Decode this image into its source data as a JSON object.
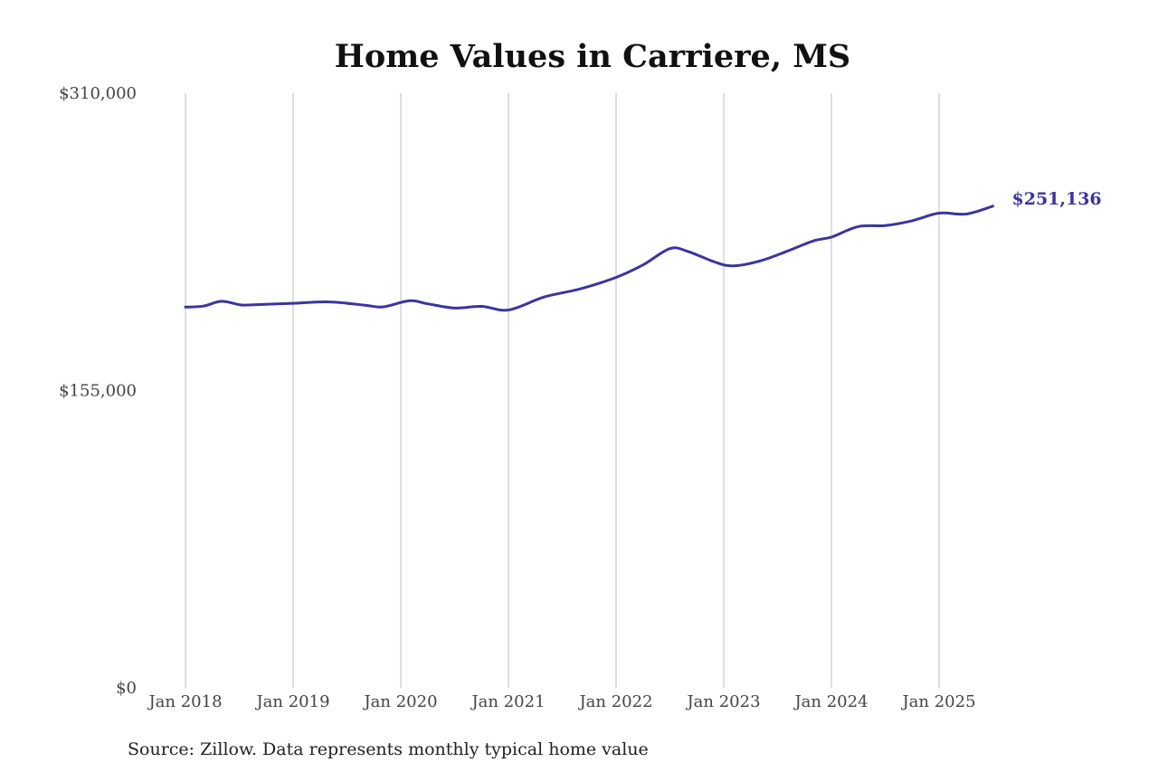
{
  "chart_data": {
    "type": "line",
    "title": "Home Values in Carriere, MS",
    "source": "Source: Zillow. Data represents monthly typical home value",
    "color": "#3a35a0",
    "ylim": [
      0,
      310000
    ],
    "y_ticks": [
      {
        "value": 0,
        "label": "$0"
      },
      {
        "value": 155000,
        "label": "$155,000"
      },
      {
        "value": 310000,
        "label": "$310,000"
      }
    ],
    "x_ticks": [
      {
        "value": "2018-01",
        "label": "Jan 2018"
      },
      {
        "value": "2019-01",
        "label": "Jan 2019"
      },
      {
        "value": "2020-01",
        "label": "Jan 2020"
      },
      {
        "value": "2021-01",
        "label": "Jan 2021"
      },
      {
        "value": "2022-01",
        "label": "Jan 2022"
      },
      {
        "value": "2023-01",
        "label": "Jan 2023"
      },
      {
        "value": "2024-01",
        "label": "Jan 2024"
      },
      {
        "value": "2025-01",
        "label": "Jan 2025"
      }
    ],
    "grid": "vertical",
    "end_label": "$251,136",
    "series": [
      {
        "x": [
          "2018-01",
          "2018-03",
          "2018-05",
          "2018-07",
          "2018-08",
          "2019-01",
          "2019-05",
          "2019-09",
          "2019-11",
          "2020-02",
          "2020-04",
          "2020-07",
          "2020-10",
          "2021-01",
          "2021-05",
          "2021-09",
          "2022-01",
          "2022-04",
          "2022-07",
          "2022-09",
          "2022-12",
          "2023-02",
          "2023-05",
          "2023-08",
          "2023-11",
          "2024-01",
          "2024-04",
          "2024-07",
          "2024-10",
          "2025-01",
          "2025-04",
          "2025-07"
        ],
        "values": [
          198500,
          199000,
          201500,
          199800,
          199600,
          200500,
          201200,
          199500,
          198600,
          201800,
          200200,
          198000,
          198900,
          197000,
          203800,
          208000,
          214000,
          220500,
          229000,
          227500,
          222000,
          220000,
          222500,
          227500,
          233000,
          235000,
          240500,
          241000,
          243500,
          247500,
          247000,
          251136
        ]
      }
    ]
  }
}
